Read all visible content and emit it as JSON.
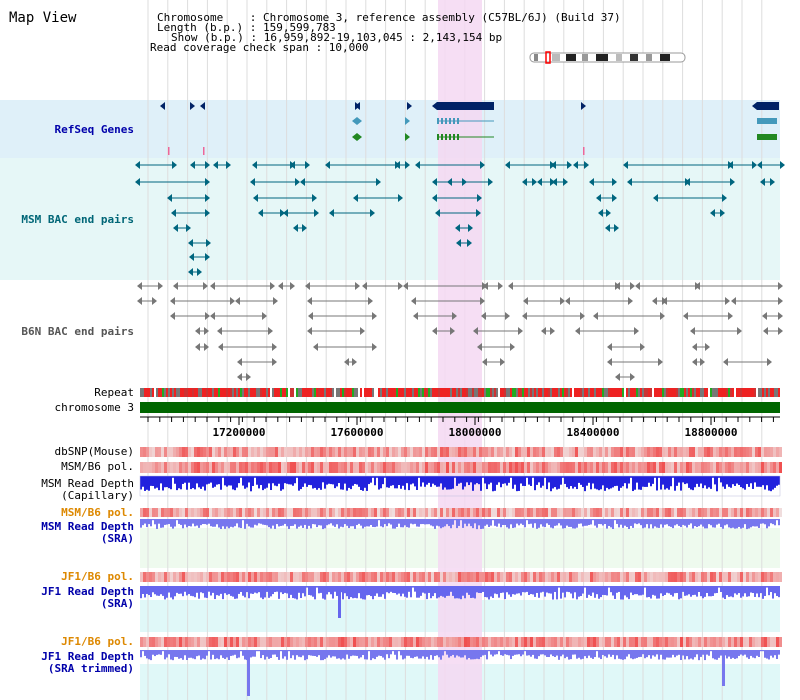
{
  "header": {
    "title": "Map View",
    "chromosome_line": "Chromosome    : Chromosome 3, reference assembly (C57BL/6J) (Build 37)",
    "length_line": "Length (b.p.) : 159,599,783",
    "show_line": "Show (b.p.) : 16,959,892-19,103,045 : 2,143,154 bp",
    "coverage_line": "Read coverage check span : 10,000"
  },
  "tracks": {
    "refseq": "RefSeq Genes",
    "msm_bac": "MSM BAC end pairs",
    "b6n_bac": "B6N BAC end pairs",
    "repeat": "Repeat",
    "chromosome": "chromosome 3",
    "dbsnp": "dbSNP(Mouse)",
    "msm_b6_pol": "MSM/B6 pol.",
    "msm_depth_cap_1": "MSM Read Depth",
    "msm_depth_cap_2": "(Capillary)",
    "msm_b6_pol_sra": "MSM/B6 pol.",
    "msm_depth_sra_1": "MSM Read Depth",
    "msm_depth_sra_2": "(SRA)",
    "jf1_pol_1": "JF1/B6 pol.",
    "jf1_depth_1": "JF1 Read Depth",
    "jf1_depth_sra": "(SRA)",
    "jf1_pol_2": "JF1/B6 pol.",
    "jf1_depth_2": "JF1 Read Depth",
    "jf1_depth_trim": "(SRA trimmed)"
  },
  "axis": {
    "ticks": [
      "17200000",
      "17600000",
      "18000000",
      "18400000",
      "18800000"
    ]
  },
  "colors": {
    "refseq_bg": "#dff0f9",
    "msm_bg": "#e6f7f7",
    "highlight": "#f5d8f2",
    "chromosome": "#006600",
    "gene": "#002266",
    "msm_feature": "#00667f",
    "b6n_feature": "#777777",
    "depth_dark": "#2222dd",
    "depth_light": "#7777ee",
    "label_blue": "#0000aa",
    "label_orange": "#dd8800",
    "label_teal": "#006677"
  }
}
